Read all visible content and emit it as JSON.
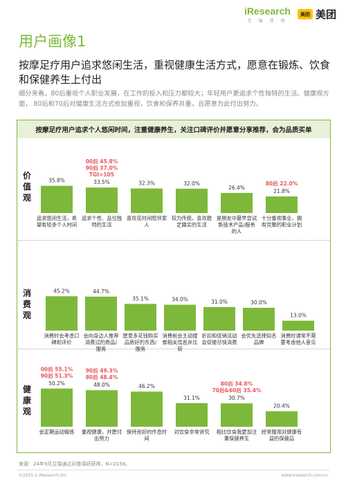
{
  "brand": {
    "name": "iResearch",
    "sub": "艾 瑞 咨 询",
    "partner_badge": "美团",
    "partner_name": "美团"
  },
  "page_title": "用户画像1",
  "headline": "按摩足疗用户追求悠闲生活，重视健康生活方式，愿意在锻炼、饮食和保健养生上付出",
  "description": "细分来看，80后重视个人职业发展，在工作的投入和压力都较大；年轻用户更追求个性独特的生活。健康观方面， 80后和70后对健康生活方式愈加重视，饮食和保养并重，且愿意为此付出努力。",
  "chart_data": {
    "type": "bar",
    "title": "按摩足疗用户追求个人悠闲时间，注重健康养生，关注口碑评价并愿意分享推荐，会为品质买单",
    "colors": {
      "bar": "#7db83a",
      "highlight": "#e8565a"
    },
    "ylim": [
      0,
      60
    ],
    "groups": [
      {
        "label": "价值观",
        "categories": [
          "追求悠闲生活，希望有较多个人时间",
          "追求个性、品位独特的生活",
          "喜欢花时间陪伴家人",
          "较为传统，喜欢稳定踏实的生活",
          "是朋友中最早尝试新技术产品/服务的人",
          "十分重视事业，拥有完整的职业计划"
        ],
        "values": [
          35.8,
          33.5,
          32.3,
          32.0,
          26.4,
          21.8
        ],
        "value_labels": [
          "35.8%",
          "33.5%",
          "32.3%",
          "32.0%",
          "26.4%",
          "21.8%"
        ],
        "annotations": [
          {
            "category_index": 1,
            "lines": [
              "00后 45.8%",
              "90后 37.0%",
              "TGI>105"
            ]
          },
          {
            "category_index": 5,
            "lines": [
              "80后 22.0%"
            ]
          }
        ]
      },
      {
        "label": "消费观",
        "categories": [
          "消费时会考虑口碑和评价",
          "会向身边人推荐消费过的商品/服务",
          "愿意多花钱购买品质好的东西/服务",
          "消费前会主动搜索相关信息并比较",
          "折扣和促销活动会促使尽快消费",
          "会优先选择知名品牌",
          "消费时通常不需要考虑他人意见"
        ],
        "values": [
          45.2,
          44.7,
          35.1,
          34.0,
          31.0,
          30.0,
          13.0
        ],
        "value_labels": [
          "45.2%",
          "44.7%",
          "35.1%",
          "34.0%",
          "31.0%",
          "30.0%",
          "13.0%"
        ],
        "annotations": []
      },
      {
        "label": "健康观",
        "categories": [
          "会定期运动锻炼",
          "重视健康，并愿付出努力",
          "保持良好的作息时间",
          "对饮食非常讲究",
          "相比饮食我更加注重保健养生",
          "经常服用对健康有益的保健品"
        ],
        "values": [
          50.2,
          48.0,
          46.2,
          31.1,
          30.7,
          20.4
        ],
        "value_labels": [
          "50.2%",
          "48.0%",
          "46.2%",
          "31.1%",
          "30.7%",
          "20.4%"
        ],
        "annotations": [
          {
            "category_index": 0,
            "lines": [
              "00后 55.1%",
              "90后 51.3%"
            ]
          },
          {
            "category_index": 1,
            "lines": [
              "90后 49.3%",
              "80后 48.4%"
            ]
          },
          {
            "category_index": 4,
            "lines": [
              "80后 34.8%",
              "70后&60后 35.4%"
            ]
          }
        ]
      }
    ]
  },
  "footer": {
    "source": "来源：24年9月艾瑞通过问卷调研获得，N=2156。",
    "copyright": "©2025.1 iResearch Inc.",
    "url": "www.iresearch.com.cn"
  }
}
